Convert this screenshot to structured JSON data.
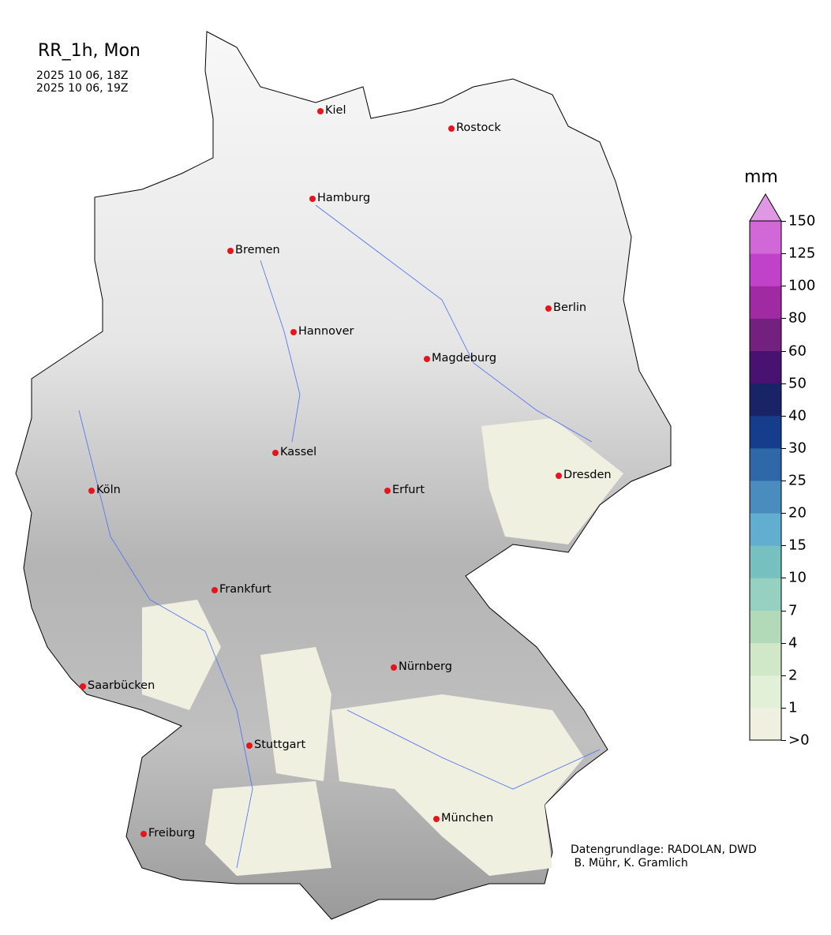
{
  "header": {
    "title": "RR_1h, Mon",
    "time_start": "2025 10 06, 18Z",
    "time_end": "2025 10 06, 19Z"
  },
  "colorbar": {
    "unit": "mm",
    "ticks": [
      ">0",
      "1",
      "2",
      "4",
      "7",
      "10",
      "15",
      "20",
      "25",
      "30",
      "40",
      "50",
      "60",
      "80",
      "100",
      "125",
      "150"
    ],
    "colors": [
      "#f0f0e0",
      "#e2f0d8",
      "#d0e8c8",
      "#b2dab8",
      "#96d0c0",
      "#76c0c0",
      "#62aed0",
      "#4a8cbe",
      "#2e68a8",
      "#163c8c",
      "#182466",
      "#481270",
      "#74207e",
      "#a02aa2",
      "#c042c8",
      "#d068d8"
    ],
    "extend_color": "#e098e4"
  },
  "cities": [
    "Kiel",
    "Rostock",
    "Hamburg",
    "Bremen",
    "Berlin",
    "Hannover",
    "Magdeburg",
    "Kassel",
    "Dresden",
    "Köln",
    "Erfurt",
    "Frankfurt",
    "Nürnberg",
    "Saarbücken",
    "Stuttgart",
    "München",
    "Freiburg"
  ],
  "credit": {
    "line1": "Datengrundlage: RADOLAN, DWD",
    "line2": " B. Mühr, K. Gramlich"
  }
}
